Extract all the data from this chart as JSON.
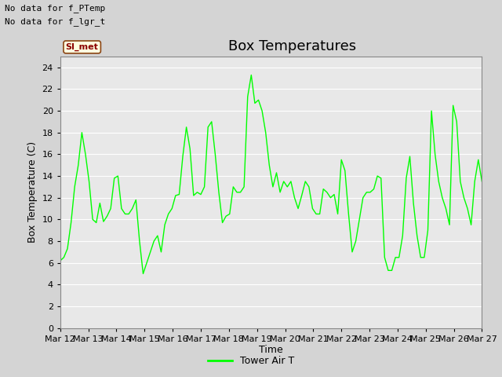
{
  "title": "Box Temperatures",
  "ylabel": "Box Temperature (C)",
  "xlabel": "Time",
  "top_left_text_line1": "No data for f_PTemp",
  "top_left_text_line2": "No data for f_lgr_t",
  "legend_label": "Tower Air T",
  "si_met_label": "SI_met",
  "ylim": [
    0,
    25
  ],
  "yticks": [
    0,
    2,
    4,
    6,
    8,
    10,
    12,
    14,
    16,
    18,
    20,
    22,
    24
  ],
  "x_labels": [
    "Mar 12",
    "Mar 13",
    "Mar 14",
    "Mar 15",
    "Mar 16",
    "Mar 17",
    "Mar 18",
    "Mar 19",
    "Mar 20",
    "Mar 21",
    "Mar 22",
    "Mar 23",
    "Mar 24",
    "Mar 25",
    "Mar 26",
    "Mar 27"
  ],
  "line_color": "#00ff00",
  "bg_color": "#d4d4d4",
  "plot_bg_color": "#e8e8e8",
  "title_fontsize": 13,
  "axis_label_fontsize": 9,
  "tick_fontsize": 8,
  "y_values": [
    6.2,
    6.5,
    7.3,
    9.7,
    13.0,
    15.0,
    18.0,
    16.0,
    13.5,
    10.0,
    9.7,
    11.5,
    9.8,
    10.3,
    11.0,
    13.8,
    14.0,
    11.0,
    10.5,
    10.5,
    11.0,
    11.8,
    8.0,
    5.0,
    6.0,
    7.0,
    8.0,
    8.5,
    7.0,
    9.5,
    10.5,
    11.0,
    12.2,
    12.3,
    15.8,
    18.5,
    16.5,
    12.2,
    12.5,
    12.3,
    13.0,
    18.5,
    19.0,
    16.0,
    12.5,
    9.7,
    10.3,
    10.5,
    13.0,
    12.5,
    12.5,
    13.0,
    21.3,
    23.3,
    20.7,
    21.0,
    20.0,
    18.0,
    15.0,
    13.0,
    14.3,
    12.5,
    13.5,
    13.0,
    13.5,
    12.0,
    11.0,
    12.2,
    13.5,
    13.0,
    11.0,
    10.5,
    10.5,
    12.8,
    12.5,
    12.0,
    12.3,
    10.5,
    15.5,
    14.5,
    10.5,
    7.0,
    8.0,
    10.0,
    12.0,
    12.5,
    12.5,
    12.8,
    14.0,
    13.8,
    6.5,
    5.3,
    5.3,
    6.5,
    6.5,
    8.5,
    13.8,
    15.8,
    11.5,
    8.5,
    6.5,
    6.5,
    9.0,
    20.0,
    16.0,
    13.5,
    12.0,
    11.0,
    9.5,
    20.5,
    19.0,
    13.5,
    12.0,
    11.0,
    9.5,
    13.5,
    15.5,
    13.5
  ]
}
